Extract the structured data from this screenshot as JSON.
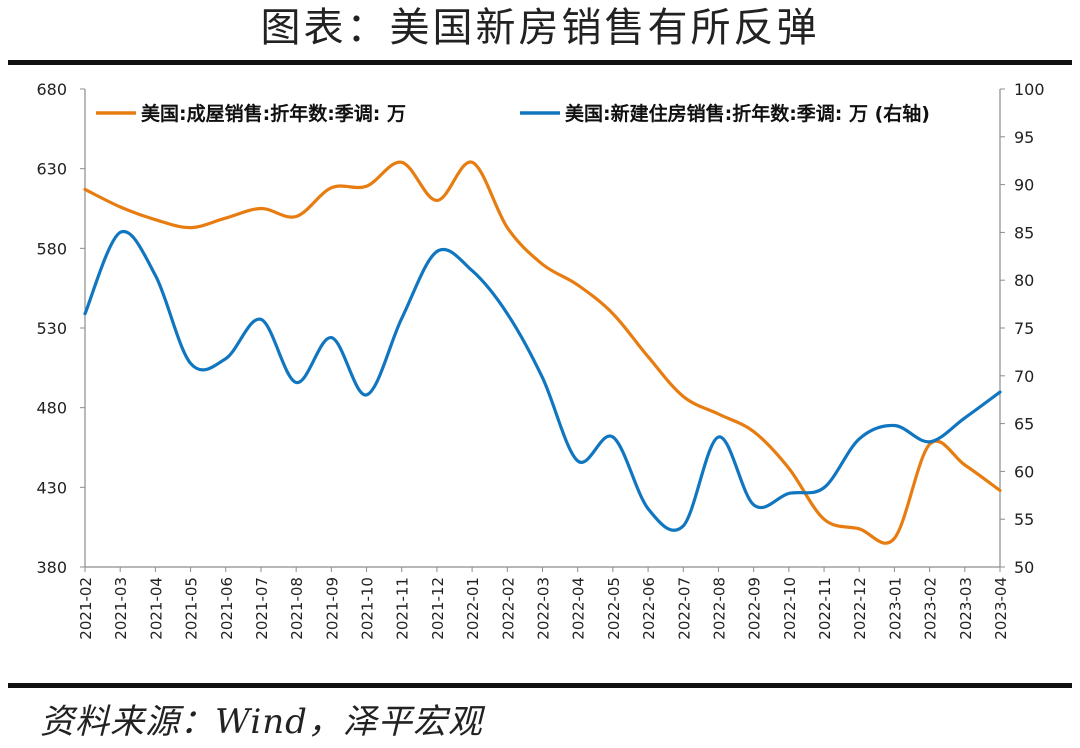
{
  "title": "图表：美国新房销售有所反弹",
  "source": "资料来源：Wind，泽平宏观",
  "colors": {
    "existing": "#E77C10",
    "new": "#1176C0"
  },
  "chart_data": {
    "type": "line",
    "categories": [
      "2021-02",
      "2021-03",
      "2021-04",
      "2021-05",
      "2021-06",
      "2021-07",
      "2021-08",
      "2021-09",
      "2021-10",
      "2021-11",
      "2021-12",
      "2022-01",
      "2022-02",
      "2022-03",
      "2022-04",
      "2022-05",
      "2022-06",
      "2022-07",
      "2022-08",
      "2022-09",
      "2022-10",
      "2022-11",
      "2022-12",
      "2023-01",
      "2023-02",
      "2023-03",
      "2023-04"
    ],
    "ylim_left": [
      380,
      680
    ],
    "yticks_left": [
      "380",
      "430",
      "480",
      "530",
      "580",
      "630",
      "680"
    ],
    "ylim_right": [
      50,
      100
    ],
    "yticks_right": [
      "50",
      "55",
      "60",
      "65",
      "70",
      "75",
      "80",
      "85",
      "90",
      "95",
      "100"
    ],
    "grid": false,
    "legend_position": "top",
    "series": [
      {
        "name": "美国:成屋销售:折年数:季调: 万",
        "axis": "left",
        "values": [
          617,
          606,
          598,
          593,
          599,
          605,
          600,
          618,
          619,
          634,
          610,
          634,
          593,
          570,
          557,
          539,
          512,
          487,
          476,
          465,
          442,
          410,
          404,
          398,
          457,
          444,
          428
        ]
      },
      {
        "name": "美国:新建住房销售:折年数:季调: 万 (右轴)",
        "axis": "right",
        "values": [
          76.5,
          85.0,
          80.5,
          71.3,
          71.8,
          75.9,
          69.3,
          74.0,
          68.0,
          76.0,
          83.0,
          81.0,
          76.5,
          69.8,
          61.1,
          63.6,
          56.1,
          54.3,
          63.6,
          56.5,
          57.7,
          58.3,
          63.4,
          64.8,
          63.1,
          65.6,
          68.3
        ]
      }
    ]
  }
}
